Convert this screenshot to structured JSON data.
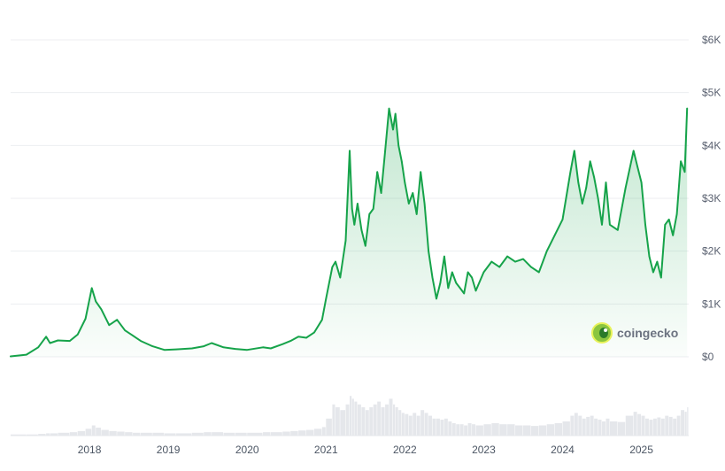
{
  "chart_data": {
    "type": "area",
    "title": "",
    "xlabel": "",
    "ylabel": "",
    "y_unit": "USD",
    "ylim": [
      0,
      6000
    ],
    "y_ticks": [
      {
        "value": 0,
        "label": "$0"
      },
      {
        "value": 1000,
        "label": "$1K"
      },
      {
        "value": 2000,
        "label": "$2K"
      },
      {
        "value": 3000,
        "label": "$3K"
      },
      {
        "value": 4000,
        "label": "$4K"
      },
      {
        "value": 5000,
        "label": "$5K"
      },
      {
        "value": 6000,
        "label": "$6K"
      }
    ],
    "xlim": [
      2017.0,
      2025.6
    ],
    "x_ticks": [
      {
        "value": 2018,
        "label": "2018"
      },
      {
        "value": 2019,
        "label": "2019"
      },
      {
        "value": 2020,
        "label": "2020"
      },
      {
        "value": 2021,
        "label": "2021"
      },
      {
        "value": 2022,
        "label": "2022"
      },
      {
        "value": 2023,
        "label": "2023"
      },
      {
        "value": 2024,
        "label": "2024"
      },
      {
        "value": 2025,
        "label": "2025"
      }
    ],
    "grid": true,
    "legend": "none",
    "line_color": "#16a34a",
    "fill_color": "#16a34a",
    "volume_color": "#e5e7eb",
    "watermark": "coingecko",
    "series": [
      {
        "name": "",
        "x": [
          2017.0,
          2017.2,
          2017.35,
          2017.45,
          2017.5,
          2017.6,
          2017.75,
          2017.85,
          2017.95,
          2018.03,
          2018.08,
          2018.15,
          2018.25,
          2018.35,
          2018.45,
          2018.55,
          2018.65,
          2018.8,
          2018.95,
          2019.1,
          2019.3,
          2019.45,
          2019.55,
          2019.7,
          2019.85,
          2020.0,
          2020.2,
          2020.3,
          2020.45,
          2020.55,
          2020.65,
          2020.75,
          2020.85,
          2020.95,
          2021.0,
          2021.08,
          2021.12,
          2021.18,
          2021.25,
          2021.3,
          2021.33,
          2021.36,
          2021.4,
          2021.45,
          2021.5,
          2021.55,
          2021.6,
          2021.65,
          2021.7,
          2021.75,
          2021.8,
          2021.85,
          2021.88,
          2021.92,
          2021.96,
          2022.0,
          2022.05,
          2022.1,
          2022.15,
          2022.2,
          2022.25,
          2022.3,
          2022.35,
          2022.4,
          2022.45,
          2022.5,
          2022.55,
          2022.6,
          2022.65,
          2022.7,
          2022.75,
          2022.8,
          2022.85,
          2022.9,
          2023.0,
          2023.1,
          2023.2,
          2023.3,
          2023.4,
          2023.5,
          2023.6,
          2023.7,
          2023.8,
          2023.9,
          2024.0,
          2024.1,
          2024.15,
          2024.2,
          2024.25,
          2024.3,
          2024.35,
          2024.4,
          2024.45,
          2024.5,
          2024.55,
          2024.6,
          2024.7,
          2024.8,
          2024.9,
          2024.95,
          2025.0,
          2025.05,
          2025.1,
          2025.15,
          2025.2,
          2025.25,
          2025.3,
          2025.35,
          2025.4,
          2025.45,
          2025.5,
          2025.55,
          2025.58
        ],
        "values": [
          8,
          40,
          180,
          380,
          260,
          310,
          300,
          420,
          720,
          1300,
          1050,
          900,
          600,
          700,
          500,
          400,
          300,
          200,
          130,
          140,
          160,
          200,
          260,
          180,
          150,
          130,
          180,
          160,
          240,
          300,
          380,
          360,
          460,
          700,
          1100,
          1700,
          1800,
          1500,
          2200,
          3900,
          2800,
          2500,
          2900,
          2400,
          2100,
          2700,
          2800,
          3500,
          3100,
          3900,
          4700,
          4300,
          4600,
          4000,
          3700,
          3300,
          2900,
          3100,
          2700,
          3500,
          2900,
          2000,
          1500,
          1100,
          1400,
          1900,
          1300,
          1600,
          1400,
          1300,
          1200,
          1600,
          1500,
          1250,
          1600,
          1800,
          1700,
          1900,
          1800,
          1850,
          1700,
          1600,
          2000,
          2300,
          2600,
          3500,
          3900,
          3300,
          2900,
          3200,
          3700,
          3400,
          3000,
          2500,
          3300,
          2500,
          2400,
          3200,
          3900,
          3600,
          3300,
          2500,
          1900,
          1600,
          1800,
          1500,
          2500,
          2600,
          2300,
          2700,
          3700,
          3500,
          4700
        ]
      }
    ],
    "volume_relative": [
      0.02,
      0.02,
      0.03,
      0.04,
      0.04,
      0.05,
      0.06,
      0.08,
      0.12,
      0.18,
      0.14,
      0.1,
      0.08,
      0.07,
      0.06,
      0.05,
      0.05,
      0.05,
      0.04,
      0.04,
      0.05,
      0.06,
      0.06,
      0.05,
      0.05,
      0.05,
      0.06,
      0.06,
      0.07,
      0.08,
      0.09,
      0.1,
      0.12,
      0.15,
      0.3,
      0.55,
      0.5,
      0.45,
      0.55,
      0.7,
      0.65,
      0.6,
      0.55,
      0.5,
      0.45,
      0.5,
      0.55,
      0.6,
      0.5,
      0.55,
      0.65,
      0.55,
      0.5,
      0.45,
      0.4,
      0.38,
      0.35,
      0.4,
      0.35,
      0.45,
      0.4,
      0.35,
      0.3,
      0.3,
      0.28,
      0.3,
      0.25,
      0.22,
      0.2,
      0.2,
      0.18,
      0.22,
      0.2,
      0.18,
      0.2,
      0.22,
      0.2,
      0.2,
      0.18,
      0.18,
      0.17,
      0.18,
      0.2,
      0.22,
      0.25,
      0.35,
      0.4,
      0.35,
      0.3,
      0.33,
      0.35,
      0.3,
      0.28,
      0.25,
      0.3,
      0.25,
      0.24,
      0.35,
      0.42,
      0.38,
      0.35,
      0.3,
      0.28,
      0.3,
      0.32,
      0.3,
      0.35,
      0.33,
      0.3,
      0.35,
      0.45,
      0.42,
      0.5
    ]
  }
}
